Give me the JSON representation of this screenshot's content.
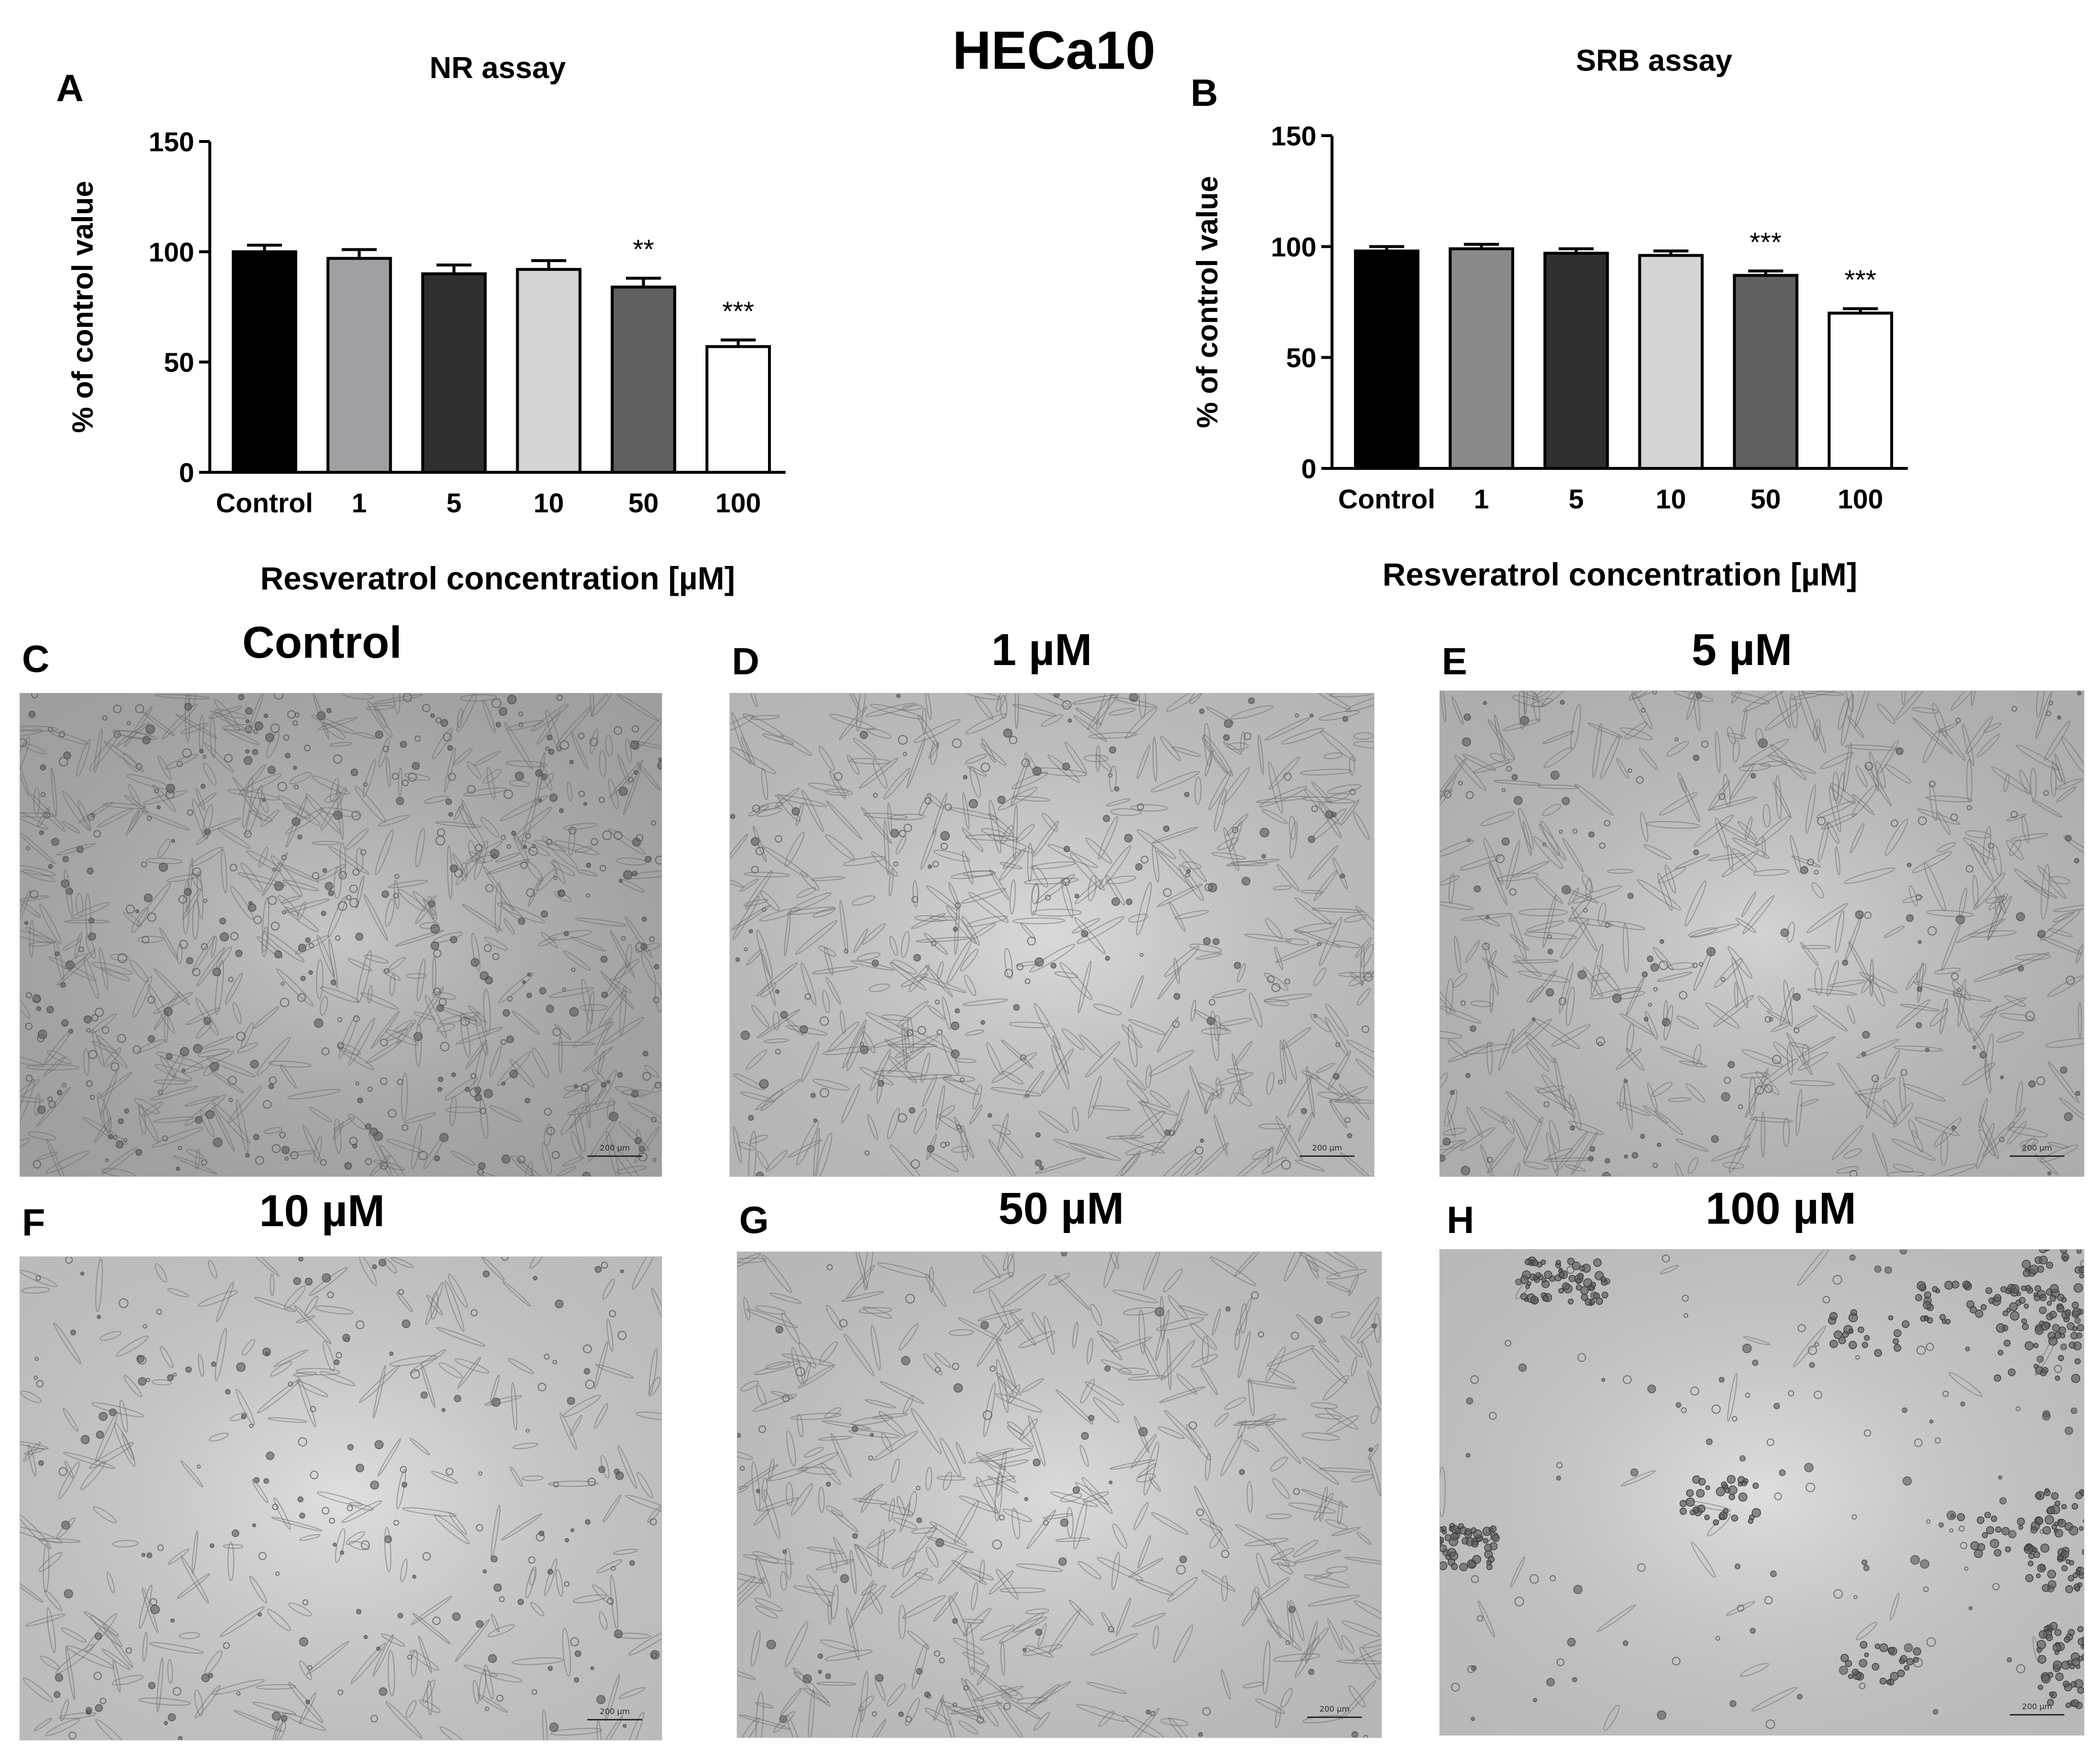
{
  "figure": {
    "title": "HECa10"
  },
  "chart_data": [
    {
      "panel": "A",
      "type": "bar",
      "title": "NR assay",
      "xlabel": "Resveratrol concentration [µM]",
      "ylabel": "% of control value",
      "categories": [
        "Control",
        "1",
        "5",
        "10",
        "50",
        "100"
      ],
      "values": [
        100,
        97,
        90,
        92,
        84,
        57
      ],
      "errors": [
        3,
        4,
        4,
        4,
        4,
        3
      ],
      "significance": [
        "",
        "",
        "",
        "",
        "**",
        "***"
      ],
      "ylim": [
        0,
        150
      ],
      "yticks": [
        0,
        50,
        100,
        150
      ],
      "bar_colors": [
        "#000000",
        "#a0a0a4",
        "#303030",
        "#d4d4d4",
        "#606060",
        "#ffffff"
      ],
      "grid": false
    },
    {
      "panel": "B",
      "type": "bar",
      "title": "SRB assay",
      "xlabel": "Resveratrol concentration [µM]",
      "ylabel": "% of control value",
      "categories": [
        "Control",
        "1",
        "5",
        "10",
        "50",
        "100"
      ],
      "values": [
        98,
        99,
        97,
        96,
        87,
        70
      ],
      "errors": [
        2,
        2,
        2,
        2,
        2,
        2
      ],
      "significance": [
        "",
        "",
        "",
        "",
        "***",
        "***"
      ],
      "ylim": [
        0,
        150
      ],
      "yticks": [
        0,
        50,
        100,
        150
      ],
      "bar_colors": [
        "#000000",
        "#8a8a8a",
        "#303030",
        "#d4d4d4",
        "#606060",
        "#ffffff"
      ],
      "grid": false
    }
  ],
  "micrographs": [
    {
      "letter": "C",
      "title": "Control",
      "scale": "200 µm"
    },
    {
      "letter": "D",
      "title": "1 µM",
      "scale": "200 µm"
    },
    {
      "letter": "E",
      "title": "5 µM",
      "scale": "200 µm"
    },
    {
      "letter": "F",
      "title": "10 µM",
      "scale": "200 µm"
    },
    {
      "letter": "G",
      "title": "50 µM",
      "scale": "200 µm"
    },
    {
      "letter": "H",
      "title": "100 µM",
      "scale": "200 µm"
    }
  ]
}
